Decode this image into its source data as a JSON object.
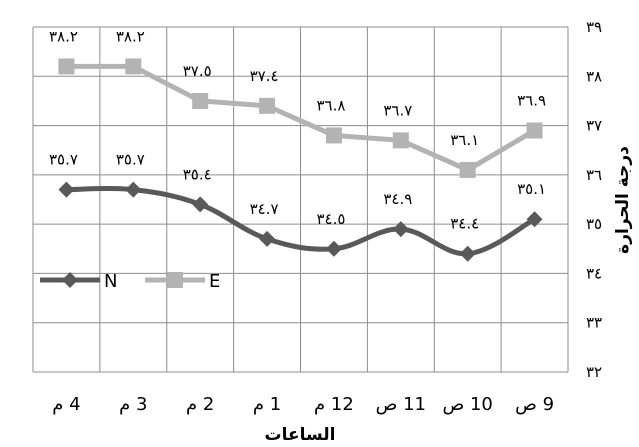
{
  "chart_data": {
    "type": "line",
    "xlabel": "الساعات",
    "ylabel": "درجة الحرارة",
    "categories": [
      "4 م",
      "3 م",
      "2 م",
      "1 م",
      "12 م",
      "11 ص",
      "10 ص",
      "9 ص"
    ],
    "ylim": [
      32,
      39
    ],
    "yticks": [
      "٣٢",
      "٣٣",
      "٣٤",
      "٣٥",
      "٣٦",
      "٣٧",
      "٣٨",
      "٣٩"
    ],
    "grid": true,
    "legend_position": "left-middle",
    "series": [
      {
        "name": "N",
        "color": "#595959",
        "marker": "diamond",
        "smooth": true,
        "values": [
          35.7,
          35.7,
          35.4,
          34.7,
          34.5,
          34.9,
          34.4,
          35.1
        ],
        "labels": [
          "٣٥.٧",
          "٣٥.٧",
          "٣٥.٤",
          "٣٤.٧",
          "٣٤.٥",
          "٣٤.٩",
          "٣٤.٤",
          "٣٥.١"
        ]
      },
      {
        "name": "E",
        "color": "#b3b3b3",
        "marker": "square",
        "smooth": false,
        "values": [
          38.2,
          38.2,
          37.5,
          37.4,
          36.8,
          36.7,
          36.1,
          36.9
        ],
        "labels": [
          "٣٨.٢",
          "٣٨.٢",
          "٣٧.٥",
          "٣٧.٤",
          "٣٦.٨",
          "٣٦.٧",
          "٣٦.١",
          "٣٦.٩"
        ]
      }
    ]
  }
}
